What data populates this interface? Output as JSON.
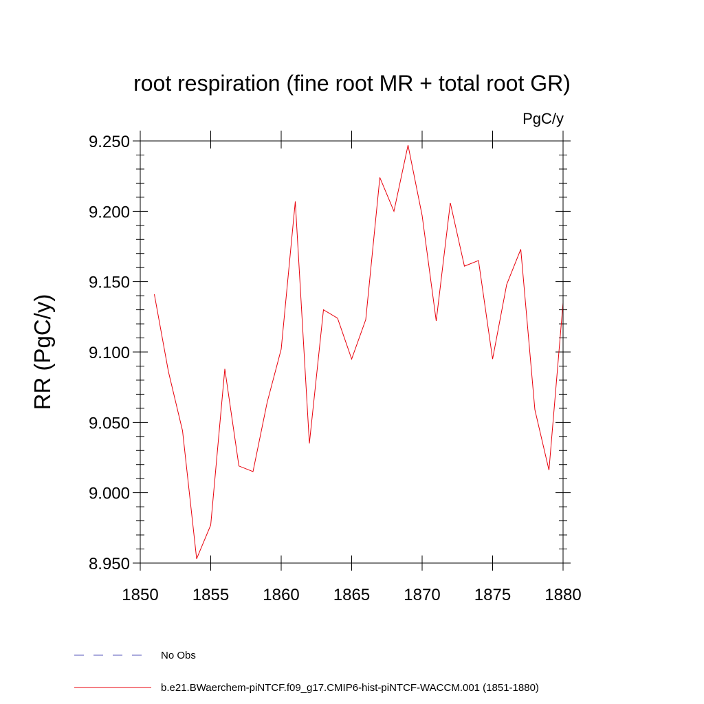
{
  "chart_data": {
    "type": "line",
    "title": "root respiration (fine root MR + total root GR)",
    "units": "PgC/y",
    "ylabel": "RR  (PgC/y)",
    "xlabel": "",
    "xlim": [
      1850,
      1880
    ],
    "ylim": [
      8.95,
      9.25
    ],
    "x_ticks": [
      1850,
      1855,
      1860,
      1865,
      1870,
      1875,
      1880
    ],
    "x_tick_labels": [
      "1850",
      "1855",
      "1860",
      "1865",
      "1870",
      "1875",
      "1880"
    ],
    "y_ticks": [
      8.95,
      9.0,
      9.05,
      9.1,
      9.15,
      9.2,
      9.25
    ],
    "y_tick_labels": [
      "8.950",
      "9.000",
      "9.050",
      "9.100",
      "9.150",
      "9.200",
      "9.250"
    ],
    "grid": false,
    "series": [
      {
        "name": "b.e21.BWaerchem-piNTCF.f09_g17.CMIP6-hist-piNTCF-WACCM.001 (1851-1880)",
        "color": "#e8000b",
        "dash": "solid",
        "x": [
          1851,
          1852,
          1853,
          1854,
          1855,
          1856,
          1857,
          1858,
          1859,
          1860,
          1861,
          1862,
          1863,
          1864,
          1865,
          1866,
          1867,
          1868,
          1869,
          1870,
          1871,
          1872,
          1873,
          1874,
          1875,
          1876,
          1877,
          1878,
          1879,
          1880
        ],
        "values": [
          9.141,
          9.086,
          9.044,
          8.953,
          8.977,
          9.088,
          9.019,
          9.015,
          9.064,
          9.102,
          9.207,
          9.035,
          9.13,
          9.124,
          9.095,
          9.123,
          9.224,
          9.2,
          9.247,
          9.197,
          9.122,
          9.206,
          9.161,
          9.165,
          9.095,
          9.148,
          9.173,
          9.059,
          9.016,
          9.135
        ]
      }
    ],
    "legend": [
      {
        "label": "No Obs",
        "color": "#5555bb",
        "dash": "dashed"
      },
      {
        "label": "b.e21.BWaerchem-piNTCF.f09_g17.CMIP6-hist-piNTCF-WACCM.001 (1851-1880)",
        "color": "#e8000b",
        "dash": "solid"
      }
    ],
    "legend_position": "bottom-left"
  }
}
